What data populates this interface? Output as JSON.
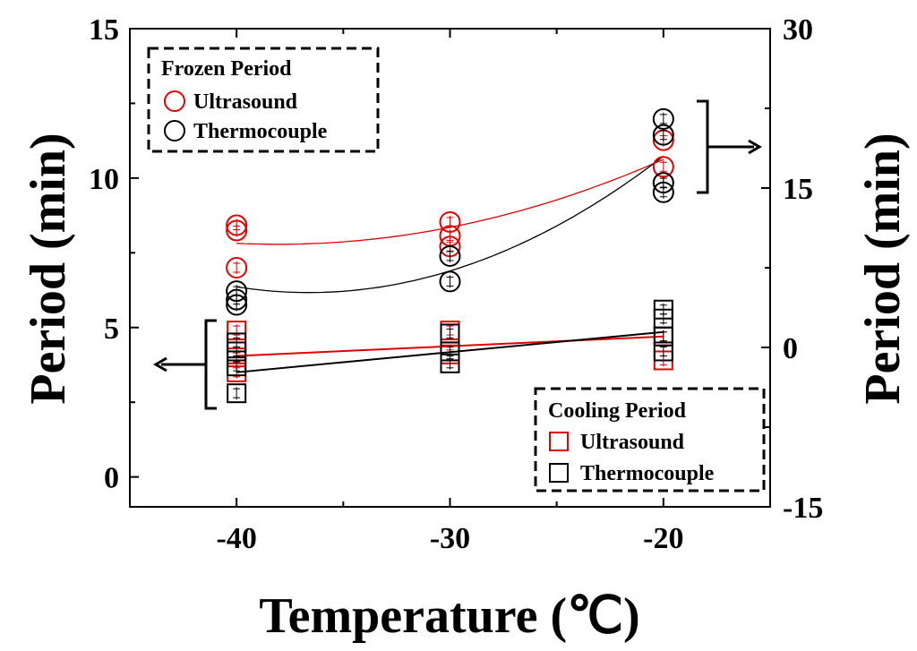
{
  "chart_data": {
    "type": "scatter",
    "xlabel": "Temperature (℃)",
    "ylabel_left": "Period (min)",
    "ylabel_right": "Period (min)",
    "xlim": [
      -45,
      -15
    ],
    "ylim_left": [
      -1,
      15
    ],
    "ylim_right": [
      -15,
      30
    ],
    "xticks": [
      "-40",
      "-30",
      "-20"
    ],
    "xtick_values": [
      -40,
      -30,
      -20
    ],
    "yticks_left": [
      "0",
      "5",
      "10",
      "15"
    ],
    "ytick_values_left": [
      0,
      5,
      10,
      15
    ],
    "yticks_right": [
      "-15",
      "0",
      "15",
      "30"
    ],
    "ytick_values_right": [
      -15,
      0,
      15,
      30
    ],
    "legends": {
      "frozen": {
        "title": "Frozen Period",
        "entries": [
          {
            "label": "Ultrasound",
            "marker": "circle",
            "color": "#e00000"
          },
          {
            "label": "Thermocouple",
            "marker": "circle",
            "color": "#000000"
          }
        ]
      },
      "cooling": {
        "title": "Cooling Period",
        "entries": [
          {
            "label": "Ultrasound",
            "marker": "square",
            "color": "#e00000"
          },
          {
            "label": "Thermocouple",
            "marker": "square",
            "color": "#000000"
          }
        ]
      }
    },
    "series": [
      {
        "name": "Frozen Period - Ultrasound",
        "axis": "right",
        "marker": "circle",
        "color": "#e00000",
        "x": [
          -40,
          -40,
          -40,
          -30,
          -30,
          -30,
          -20,
          -20,
          -20
        ],
        "y": [
          7.5,
          11.0,
          11.5,
          9.5,
          10.5,
          11.8,
          15.5,
          17.0,
          19.5
        ],
        "fit": {
          "type": "quadratic",
          "x": [
            -40,
            -30,
            -20
          ],
          "y": [
            9.8,
            11.3,
            17.7
          ]
        }
      },
      {
        "name": "Frozen Period - Thermocouple",
        "axis": "right",
        "marker": "circle",
        "color": "#000000",
        "x": [
          -40,
          -40,
          -40,
          -30,
          -30,
          -20,
          -20,
          -20,
          -20
        ],
        "y": [
          4.0,
          4.5,
          5.3,
          6.2,
          8.6,
          14.6,
          15.5,
          20.0,
          21.5
        ],
        "fit": {
          "type": "quadratic",
          "x": [
            -40,
            -30,
            -20
          ],
          "y": [
            5.7,
            7.2,
            18.0
          ]
        }
      },
      {
        "name": "Cooling Period - Ultrasound",
        "axis": "left",
        "marker": "square",
        "color": "#e00000",
        "x": [
          -40,
          -40,
          -40,
          -30,
          -30,
          -20,
          -20
        ],
        "y": [
          3.5,
          4.0,
          4.9,
          4.1,
          4.9,
          3.9,
          4.7
        ],
        "fit": {
          "type": "linear",
          "x": [
            -40,
            -20
          ],
          "y": [
            4.05,
            4.7
          ]
        }
      },
      {
        "name": "Cooling Period - Thermocouple",
        "axis": "left",
        "marker": "square",
        "color": "#000000",
        "x": [
          -40,
          -40,
          -40,
          -40,
          -30,
          -30,
          -30,
          -20,
          -20,
          -20,
          -20
        ],
        "y": [
          2.8,
          3.7,
          4.2,
          4.5,
          3.8,
          4.2,
          4.8,
          4.2,
          4.7,
          5.3,
          5.6
        ],
        "fit": {
          "type": "linear",
          "x": [
            -40,
            -20
          ],
          "y": [
            3.5,
            4.85
          ]
        }
      }
    ],
    "annotations": [
      {
        "type": "bracket-arrow",
        "points_to": "left axis",
        "group": "Cooling Period"
      },
      {
        "type": "bracket-arrow",
        "points_to": "right axis",
        "group": "Frozen Period"
      }
    ]
  }
}
